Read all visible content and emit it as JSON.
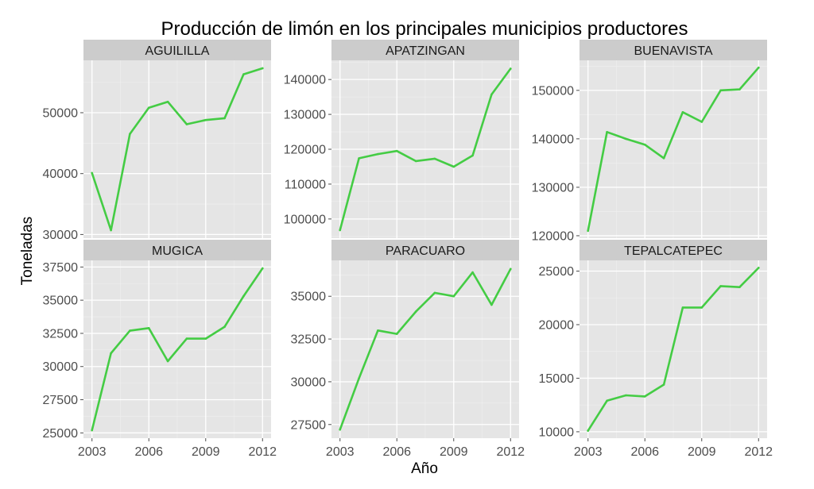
{
  "chart_data": {
    "type": "line",
    "title": "Producción de limón en los principales municipios productores",
    "xlabel": "Año",
    "ylabel": "Toneladas",
    "grid": true,
    "line_color": "#44cc44",
    "x": [
      2003,
      2004,
      2005,
      2006,
      2007,
      2008,
      2009,
      2010,
      2011,
      2012
    ],
    "x_ticks": [
      2003,
      2006,
      2009,
      2012
    ],
    "xlim": [
      2002.55,
      2012.45
    ],
    "facets": [
      {
        "name": "AGUILILLA",
        "values": [
          40100,
          30700,
          46500,
          50800,
          51800,
          48100,
          48800,
          49100,
          56300,
          57300
        ],
        "ylim": [
          29400,
          58600
        ],
        "y_ticks": [
          30000,
          40000,
          50000
        ]
      },
      {
        "name": "APATZINGAN",
        "values": [
          96800,
          117400,
          118600,
          119500,
          116600,
          117300,
          115000,
          118200,
          135700,
          143100
        ],
        "ylim": [
          94500,
          145500
        ],
        "y_ticks": [
          100000,
          110000,
          120000,
          130000,
          140000
        ]
      },
      {
        "name": "BUENAVISTA",
        "values": [
          121000,
          141400,
          140000,
          138800,
          136000,
          145500,
          143500,
          150000,
          150200,
          154700
        ],
        "ylim": [
          119500,
          156200
        ],
        "y_ticks": [
          120000,
          130000,
          140000,
          150000
        ]
      },
      {
        "name": "MUGICA",
        "values": [
          25200,
          31000,
          32700,
          32900,
          30400,
          32100,
          32100,
          33000,
          35300,
          37400
        ],
        "ylim": [
          24600,
          38000
        ],
        "y_ticks": [
          25000,
          27500,
          30000,
          32500,
          35000,
          37500
        ]
      },
      {
        "name": "PARACUARO",
        "values": [
          27200,
          30200,
          33000,
          32800,
          34100,
          35200,
          35000,
          36400,
          34500,
          36600
        ],
        "ylim": [
          26700,
          37100
        ],
        "y_ticks": [
          27500,
          30000,
          32500,
          35000
        ]
      },
      {
        "name": "TEPALCATEPEC",
        "values": [
          10100,
          12900,
          13400,
          13300,
          14400,
          21600,
          21600,
          23600,
          23500,
          25300
        ],
        "ylim": [
          9400,
          26000
        ],
        "y_ticks": [
          10000,
          15000,
          20000,
          25000
        ]
      }
    ]
  }
}
